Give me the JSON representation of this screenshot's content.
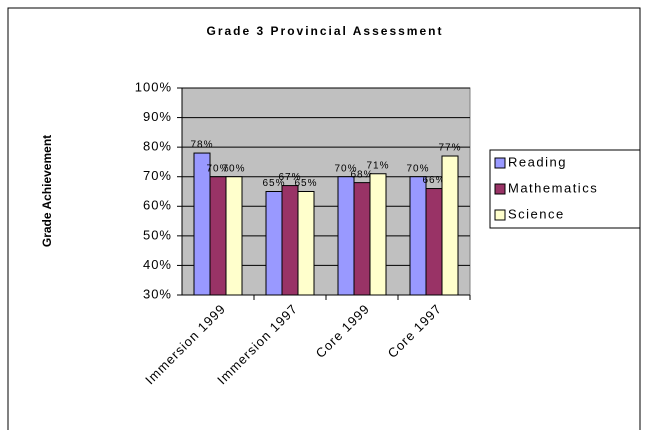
{
  "chart_data": {
    "type": "bar",
    "title": "Grade 3 Provincial Assessment",
    "y_label": "Grade Achievement",
    "categories": [
      "Immersion 1999",
      "Immersion 1997",
      "Core 1999",
      "Core 1997"
    ],
    "series": [
      {
        "name": "Reading",
        "color": "#9999ff",
        "values": [
          78,
          65,
          70,
          70
        ],
        "value_labels": [
          "78%",
          "65%",
          "70%",
          "70%"
        ]
      },
      {
        "name": "Mathematics",
        "color": "#993366",
        "values": [
          70,
          67,
          68,
          66
        ],
        "value_labels": [
          "70%",
          "67%",
          "68%",
          "66%"
        ]
      },
      {
        "name": "Science",
        "color": "#ffffcc",
        "values": [
          70,
          65,
          71,
          77
        ],
        "value_labels": [
          "70%",
          "65%",
          "71%",
          "77%"
        ]
      }
    ],
    "ylim": [
      30,
      100
    ],
    "yticks": [
      {
        "value": 30,
        "label": "30%"
      },
      {
        "value": 40,
        "label": "40%"
      },
      {
        "value": 50,
        "label": "50%"
      },
      {
        "value": 60,
        "label": "60%"
      },
      {
        "value": 70,
        "label": "70%"
      },
      {
        "value": 80,
        "label": "80%"
      },
      {
        "value": 90,
        "label": "90%"
      },
      {
        "value": 100,
        "label": "100%"
      }
    ],
    "grid": true,
    "legend": "right",
    "plot_background": "#c0c0c0"
  }
}
